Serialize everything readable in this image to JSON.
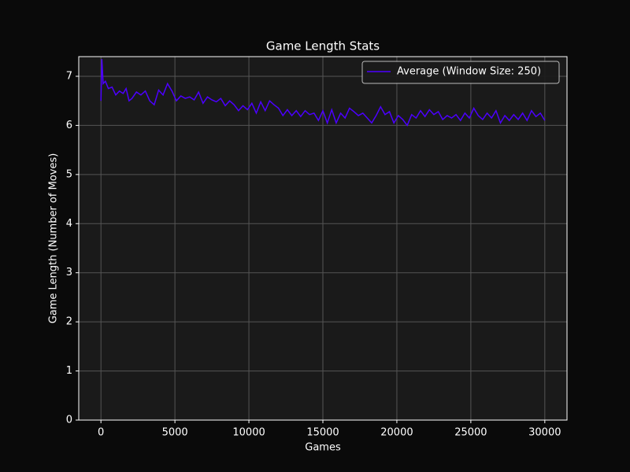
{
  "chart_data": {
    "type": "line",
    "title": "Game Length Stats",
    "xlabel": "Games",
    "ylabel": "Game Length (Number of Moves)",
    "x": [
      0,
      60,
      150,
      300,
      500,
      750,
      1000,
      1250,
      1500,
      1700,
      1900,
      2100,
      2400,
      2700,
      3000,
      3300,
      3600,
      3900,
      4200,
      4500,
      4800,
      5100,
      5400,
      5700,
      6000,
      6300,
      6600,
      6900,
      7200,
      7500,
      7800,
      8100,
      8400,
      8700,
      9000,
      9300,
      9600,
      9900,
      10200,
      10500,
      10800,
      11100,
      11400,
      11700,
      12000,
      12300,
      12600,
      12900,
      13200,
      13500,
      13800,
      14100,
      14400,
      14700,
      15000,
      15300,
      15600,
      15900,
      16200,
      16500,
      16800,
      17100,
      17400,
      17700,
      18000,
      18300,
      18600,
      18900,
      19200,
      19500,
      19800,
      20100,
      20400,
      20700,
      21000,
      21300,
      21600,
      21900,
      22200,
      22500,
      22800,
      23100,
      23400,
      23700,
      24000,
      24300,
      24600,
      24900,
      25200,
      25500,
      25800,
      26100,
      26400,
      26700,
      27000,
      27300,
      27600,
      27900,
      28200,
      28500,
      28800,
      29100,
      29400,
      29700,
      30000
    ],
    "series": [
      {
        "name": "Average (Window Size: 250)",
        "color": "#4c00ff",
        "values": [
          6.5,
          7.35,
          6.85,
          6.9,
          6.75,
          6.78,
          6.62,
          6.7,
          6.65,
          6.75,
          6.5,
          6.55,
          6.68,
          6.62,
          6.7,
          6.5,
          6.42,
          6.72,
          6.62,
          6.85,
          6.7,
          6.5,
          6.6,
          6.55,
          6.58,
          6.52,
          6.68,
          6.45,
          6.58,
          6.52,
          6.48,
          6.55,
          6.4,
          6.5,
          6.42,
          6.3,
          6.4,
          6.32,
          6.45,
          6.25,
          6.48,
          6.3,
          6.5,
          6.42,
          6.35,
          6.2,
          6.32,
          6.2,
          6.3,
          6.18,
          6.3,
          6.22,
          6.25,
          6.1,
          6.3,
          6.05,
          6.32,
          6.05,
          6.25,
          6.15,
          6.35,
          6.28,
          6.2,
          6.25,
          6.15,
          6.05,
          6.2,
          6.38,
          6.22,
          6.28,
          6.05,
          6.2,
          6.12,
          6.0,
          6.22,
          6.15,
          6.3,
          6.18,
          6.32,
          6.22,
          6.28,
          6.12,
          6.2,
          6.15,
          6.22,
          6.1,
          6.25,
          6.15,
          6.35,
          6.2,
          6.12,
          6.25,
          6.15,
          6.3,
          6.05,
          6.2,
          6.1,
          6.22,
          6.12,
          6.25,
          6.1,
          6.3,
          6.18,
          6.25,
          6.1
        ]
      }
    ],
    "xlim": [
      -1500,
      31500
    ],
    "ylim": [
      0,
      7.4
    ],
    "xticks": [
      0,
      5000,
      10000,
      15000,
      20000,
      25000,
      30000
    ],
    "yticks": [
      0,
      1,
      2,
      3,
      4,
      5,
      6,
      7
    ],
    "grid": true,
    "legend": "upper right"
  }
}
